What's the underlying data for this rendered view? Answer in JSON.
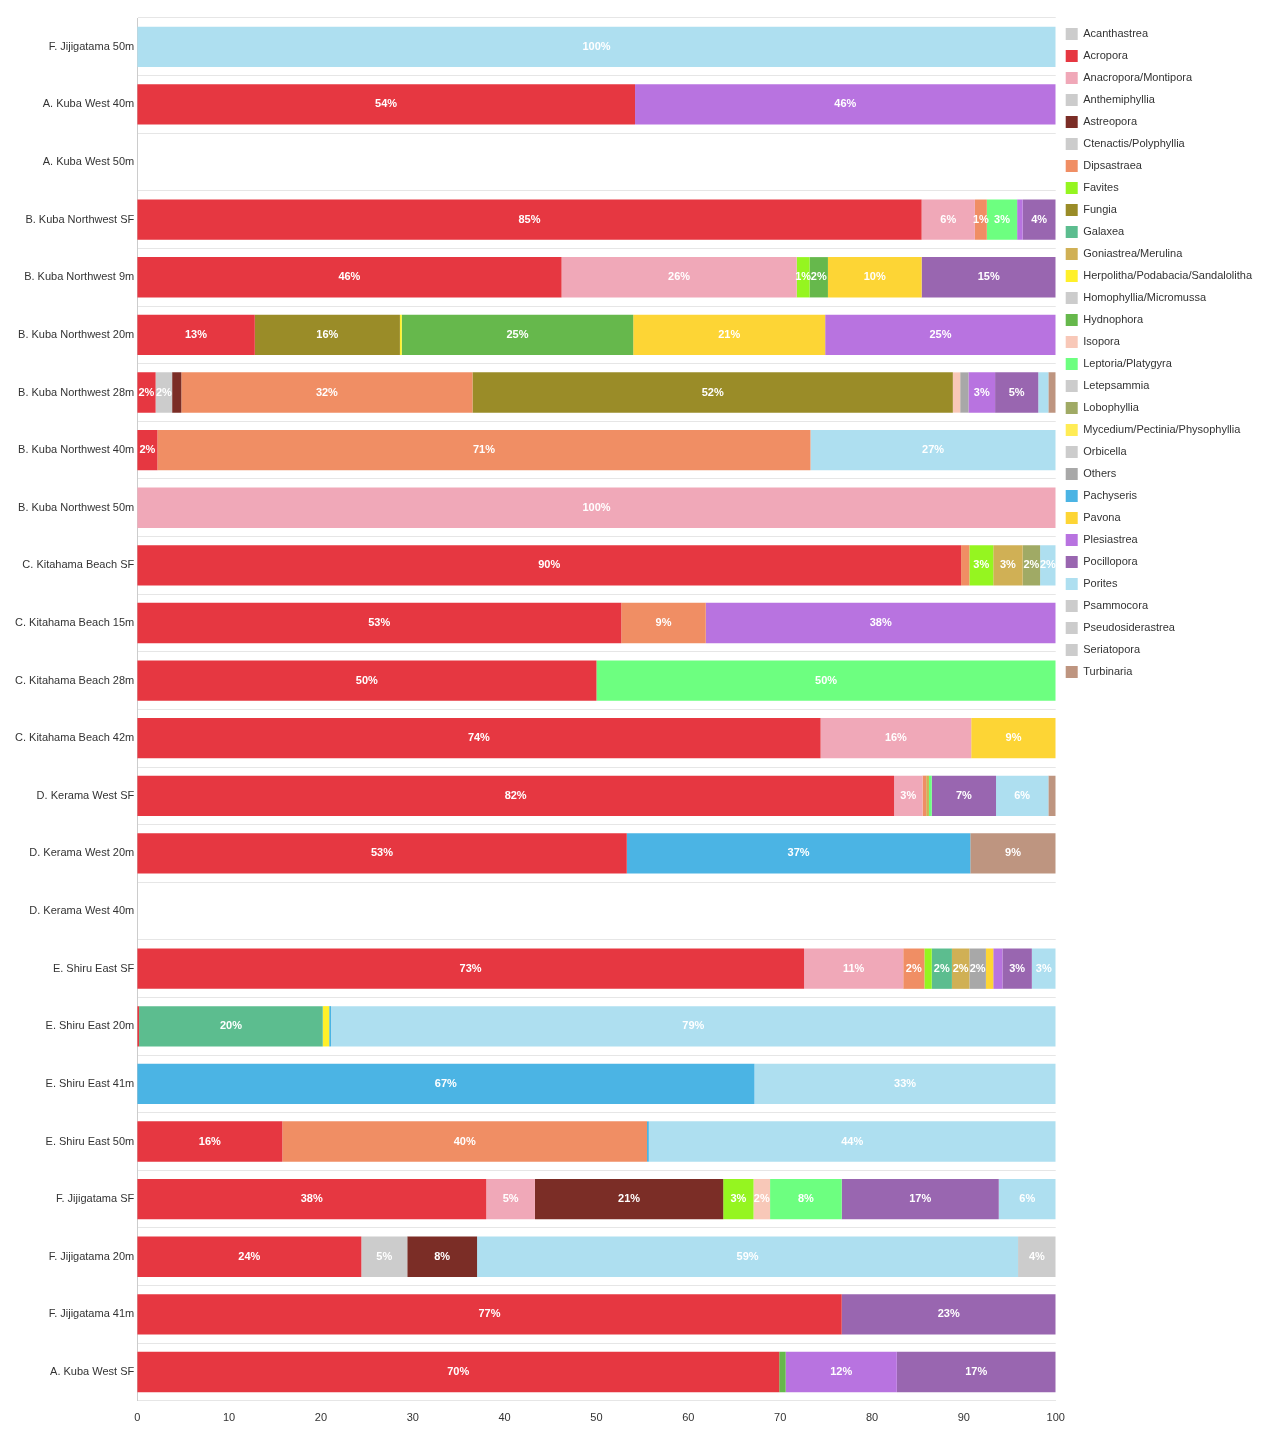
{
  "chart_data": {
    "type": "bar",
    "orientation": "horizontal",
    "stacked": true,
    "legend": "right",
    "grid": "y",
    "categories": [
      "F. Jijigatama 50m",
      "A. Kuba West 40m",
      "A. Kuba West 50m",
      "B. Kuba Northwest SF",
      "B. Kuba Northwest 9m",
      "B. Kuba Northwest 20m",
      "B. Kuba Northwest 28m",
      "B. Kuba Northwest 40m",
      "B. Kuba Northwest 50m",
      "C. Kitahama Beach SF",
      "C. Kitahama Beach 15m",
      "C. Kitahama Beach 28m",
      "C. Kitahama Beach 42m",
      "D. Kerama West SF",
      "D. Kerama West 20m",
      "D. Kerama West 40m",
      "E. Shiru East SF",
      "E. Shiru East 20m",
      "E. Shiru East 41m",
      "E. Shiru East 50m",
      "F. Jijigatama SF",
      "F. Jijigatama 20m",
      "F. Jijigatama 41m",
      "A. Kuba West SF"
    ],
    "xlim": [
      0,
      100
    ],
    "xticks": [
      0,
      10,
      20,
      30,
      40,
      50,
      60,
      70,
      80,
      90,
      100
    ],
    "series": [
      {
        "name": "Acanthastrea",
        "color": "#cccccc",
        "values": [
          null,
          null,
          null,
          null,
          null,
          null,
          null,
          null,
          null,
          null,
          null,
          null,
          null,
          null,
          null,
          null,
          null,
          null,
          null,
          null,
          null,
          null,
          null,
          null
        ]
      },
      {
        "name": "Acropora",
        "color": "#e63741",
        "values": [
          null,
          54.2,
          null,
          85.4,
          46.2,
          12.8,
          2.0,
          2.2,
          null,
          89.7,
          52.7,
          50,
          74.4,
          82.4,
          53.3,
          null,
          72.6,
          0.2,
          null,
          15.8,
          38.0,
          24.4,
          76.7,
          69.9
        ],
        "value_labels": [
          null,
          "54%",
          null,
          "85%",
          "46%",
          "13%",
          "2%",
          "2%",
          null,
          "90%",
          "53%",
          "50%",
          "74%",
          "82%",
          "53%",
          null,
          "73%",
          null,
          null,
          "16%",
          "38%",
          "24%",
          "77%",
          "70%"
        ]
      },
      {
        "name": "Anacropora/Montipora",
        "color": "#f0a8b8",
        "values": [
          null,
          null,
          null,
          5.8,
          25.6,
          null,
          null,
          null,
          100,
          null,
          null,
          null,
          16.4,
          3.1,
          null,
          null,
          10.8,
          null,
          null,
          null,
          5.3,
          null,
          null,
          null
        ],
        "value_labels": [
          null,
          null,
          null,
          "6%",
          "26%",
          null,
          null,
          null,
          "100%",
          null,
          null,
          null,
          "16%",
          "3%",
          null,
          null,
          "11%",
          null,
          null,
          null,
          "5%",
          null,
          null,
          null
        ]
      },
      {
        "name": "Anthemiphyllia",
        "color": "#cccccc",
        "values": [
          null,
          null,
          null,
          null,
          null,
          null,
          1.8,
          null,
          null,
          null,
          null,
          null,
          null,
          null,
          null,
          null,
          null,
          null,
          null,
          null,
          null,
          5.0,
          null,
          null
        ],
        "value_labels": [
          null,
          null,
          null,
          null,
          null,
          null,
          "2%",
          null,
          null,
          null,
          null,
          null,
          null,
          null,
          null,
          null,
          null,
          null,
          null,
          null,
          null,
          "5%",
          null,
          null
        ]
      },
      {
        "name": "Astreopora",
        "color": "#7b2d26",
        "values": [
          null,
          null,
          null,
          null,
          null,
          null,
          1.0,
          null,
          null,
          null,
          null,
          null,
          null,
          null,
          null,
          null,
          null,
          null,
          null,
          null,
          20.5,
          7.6,
          null,
          null
        ],
        "value_labels": [
          null,
          null,
          null,
          null,
          null,
          null,
          null,
          null,
          null,
          null,
          null,
          null,
          null,
          null,
          null,
          null,
          null,
          null,
          null,
          null,
          "21%",
          "8%",
          null,
          null
        ]
      },
      {
        "name": "Ctenactis/Polyphyllia",
        "color": "#cccccc",
        "values": [
          null,
          null,
          null,
          null,
          null,
          null,
          null,
          null,
          null,
          null,
          null,
          null,
          null,
          null,
          null,
          null,
          null,
          null,
          null,
          null,
          null,
          null,
          null,
          null
        ]
      },
      {
        "name": "Dipsastraea",
        "color": "#f08e64",
        "values": [
          null,
          null,
          null,
          1.3,
          null,
          null,
          31.7,
          71.1,
          null,
          0.9,
          9.2,
          null,
          null,
          0.4,
          null,
          null,
          2.3,
          null,
          null,
          39.7,
          null,
          null,
          null,
          null
        ],
        "value_labels": [
          null,
          null,
          null,
          "1%",
          null,
          null,
          "32%",
          "71%",
          null,
          null,
          "9%",
          null,
          null,
          null,
          null,
          null,
          "2%",
          null,
          null,
          "40%",
          null,
          null,
          null,
          null
        ]
      },
      {
        "name": "Favites",
        "color": "#95f520",
        "values": [
          null,
          null,
          null,
          null,
          1.4,
          null,
          null,
          null,
          null,
          2.6,
          null,
          null,
          null,
          null,
          null,
          null,
          0.8,
          null,
          null,
          null,
          3.3,
          null,
          null,
          null
        ],
        "value_labels": [
          null,
          null,
          null,
          null,
          "1%",
          null,
          null,
          null,
          null,
          "3%",
          null,
          null,
          null,
          null,
          null,
          null,
          null,
          null,
          null,
          null,
          "3%",
          null,
          null,
          null
        ]
      },
      {
        "name": "Fungia",
        "color": "#9a8c28",
        "values": [
          null,
          null,
          null,
          null,
          null,
          15.8,
          52.3,
          null,
          null,
          null,
          null,
          null,
          null,
          null,
          null,
          null,
          null,
          null,
          null,
          null,
          null,
          null,
          null,
          null
        ],
        "value_labels": [
          null,
          null,
          null,
          null,
          null,
          "16%",
          "52%",
          null,
          null,
          null,
          null,
          null,
          null,
          null,
          null,
          null,
          null,
          null,
          null,
          null,
          null,
          null,
          null,
          null
        ]
      },
      {
        "name": "Galaxea",
        "color": "#5cbd8f",
        "values": [
          null,
          null,
          null,
          null,
          null,
          null,
          null,
          null,
          null,
          null,
          null,
          null,
          null,
          null,
          null,
          null,
          2.2,
          20.0,
          null,
          null,
          null,
          null,
          null,
          null
        ],
        "value_labels": [
          null,
          null,
          null,
          null,
          null,
          null,
          null,
          null,
          null,
          null,
          null,
          null,
          null,
          null,
          null,
          null,
          "2%",
          "20%",
          null,
          null,
          null,
          null,
          null,
          null
        ]
      },
      {
        "name": "Goniastrea/Merulina",
        "color": "#d0b055",
        "values": [
          null,
          null,
          null,
          null,
          null,
          null,
          null,
          null,
          null,
          3.2,
          null,
          null,
          null,
          0.3,
          null,
          null,
          1.9,
          null,
          null,
          null,
          null,
          null,
          null,
          null
        ],
        "value_labels": [
          null,
          null,
          null,
          null,
          null,
          null,
          null,
          null,
          null,
          "3%",
          null,
          null,
          null,
          null,
          null,
          null,
          "2%",
          null,
          null,
          null,
          null,
          null,
          null,
          null
        ]
      },
      {
        "name": "Herpolitha/Podabacia/Sandalolitha",
        "color": "#fff02a",
        "values": [
          null,
          null,
          null,
          null,
          null,
          0.2,
          null,
          null,
          null,
          null,
          null,
          null,
          null,
          null,
          null,
          null,
          null,
          0.7,
          null,
          null,
          null,
          null,
          null,
          null
        ]
      },
      {
        "name": "Homophyllia/Micromussa",
        "color": "#cccccc",
        "values": [
          null,
          null,
          null,
          null,
          null,
          null,
          null,
          null,
          null,
          null,
          null,
          null,
          null,
          null,
          null,
          null,
          null,
          null,
          null,
          null,
          null,
          null,
          null,
          null
        ]
      },
      {
        "name": "Hydnophora",
        "color": "#66b84c",
        "values": [
          null,
          null,
          null,
          null,
          2.0,
          25.2,
          null,
          null,
          null,
          null,
          null,
          null,
          null,
          null,
          null,
          null,
          null,
          null,
          null,
          null,
          null,
          null,
          null,
          0.7
        ],
        "value_labels": [
          null,
          null,
          null,
          null,
          "2%",
          "25%",
          null,
          null,
          null,
          null,
          null,
          null,
          null,
          null,
          null,
          null,
          null,
          null,
          null,
          null,
          null,
          null,
          null,
          null
        ]
      },
      {
        "name": "Isopora",
        "color": "#f8c8b8",
        "values": [
          null,
          null,
          null,
          null,
          null,
          null,
          0.8,
          null,
          null,
          null,
          null,
          null,
          null,
          null,
          null,
          null,
          null,
          null,
          null,
          null,
          1.8,
          null,
          null,
          null
        ],
        "value_labels": [
          null,
          null,
          null,
          null,
          null,
          null,
          null,
          null,
          null,
          null,
          null,
          null,
          null,
          null,
          null,
          null,
          null,
          null,
          null,
          null,
          "2%",
          null,
          null,
          null
        ]
      },
      {
        "name": "Leptoria/Platygyra",
        "color": "#6dff80",
        "values": [
          null,
          null,
          null,
          3.3,
          null,
          null,
          null,
          null,
          null,
          null,
          null,
          50,
          null,
          0.3,
          null,
          null,
          null,
          null,
          null,
          null,
          7.8,
          null,
          null,
          null
        ],
        "value_labels": [
          null,
          null,
          null,
          "3%",
          null,
          null,
          null,
          null,
          null,
          null,
          null,
          "50%",
          null,
          null,
          null,
          null,
          null,
          null,
          null,
          null,
          "8%",
          null,
          null,
          null
        ]
      },
      {
        "name": "Letepsammia",
        "color": "#cccccc",
        "values": [
          null,
          null,
          null,
          null,
          null,
          null,
          null,
          null,
          null,
          null,
          null,
          null,
          null,
          null,
          null,
          null,
          null,
          null,
          null,
          null,
          null,
          null,
          null,
          null
        ]
      },
      {
        "name": "Lobophyllia",
        "color": "#a0aa65",
        "values": [
          null,
          null,
          null,
          null,
          null,
          null,
          null,
          null,
          null,
          1.9,
          null,
          null,
          null,
          null,
          null,
          null,
          null,
          null,
          null,
          null,
          null,
          null,
          null,
          null
        ],
        "value_labels": [
          null,
          null,
          null,
          null,
          null,
          null,
          null,
          null,
          null,
          "2%",
          null,
          null,
          null,
          null,
          null,
          null,
          null,
          null,
          null,
          null,
          null,
          null,
          null,
          null
        ]
      },
      {
        "name": "Mycedium/Pectinia/Physophyllia",
        "color": "#ffec55",
        "values": [
          null,
          null,
          null,
          null,
          null,
          null,
          null,
          null,
          null,
          null,
          null,
          null,
          null,
          null,
          null,
          null,
          null,
          null,
          null,
          null,
          null,
          null,
          null,
          null
        ]
      },
      {
        "name": "Orbicella",
        "color": "#cccccc",
        "values": [
          null,
          null,
          null,
          null,
          null,
          null,
          null,
          null,
          null,
          null,
          null,
          null,
          null,
          null,
          null,
          null,
          null,
          null,
          null,
          null,
          null,
          null,
          null,
          null
        ]
      },
      {
        "name": "Others",
        "color": "#a8a8a8",
        "values": [
          null,
          null,
          null,
          null,
          null,
          null,
          0.9,
          null,
          null,
          null,
          null,
          null,
          null,
          null,
          null,
          null,
          1.8,
          null,
          null,
          null,
          null,
          null,
          null,
          null
        ],
        "value_labels": [
          null,
          null,
          null,
          null,
          null,
          null,
          null,
          null,
          null,
          null,
          null,
          null,
          null,
          null,
          null,
          null,
          "2%",
          null,
          null,
          null,
          null,
          null,
          null,
          null
        ]
      },
      {
        "name": "Pachyseris",
        "color": "#4bb4e4",
        "values": [
          null,
          null,
          null,
          null,
          null,
          null,
          null,
          null,
          null,
          null,
          null,
          null,
          null,
          null,
          37.4,
          null,
          null,
          0.2,
          67.2,
          0.2,
          null,
          null,
          null,
          null
        ],
        "value_labels": [
          null,
          null,
          null,
          null,
          null,
          null,
          null,
          null,
          null,
          null,
          null,
          null,
          null,
          null,
          "37%",
          null,
          null,
          null,
          "67%",
          null,
          null,
          null,
          null,
          null
        ]
      },
      {
        "name": "Pavona",
        "color": "#fdd535",
        "values": [
          null,
          null,
          null,
          null,
          10.2,
          20.9,
          null,
          null,
          null,
          null,
          null,
          null,
          9.2,
          null,
          null,
          null,
          0.8,
          null,
          null,
          null,
          null,
          null,
          null,
          null
        ],
        "value_labels": [
          null,
          null,
          null,
          null,
          "10%",
          "21%",
          null,
          null,
          null,
          null,
          null,
          null,
          "9%",
          null,
          null,
          null,
          null,
          null,
          null,
          null,
          null,
          null,
          null,
          null
        ]
      },
      {
        "name": "Plesiastrea",
        "color": "#b873e0",
        "values": [
          null,
          45.8,
          null,
          0.6,
          null,
          25.1,
          2.9,
          null,
          null,
          null,
          38.1,
          null,
          null,
          null,
          null,
          null,
          1.0,
          null,
          null,
          null,
          null,
          null,
          null,
          12.1
        ],
        "value_labels": [
          null,
          "46%",
          null,
          null,
          null,
          "25%",
          "3%",
          null,
          null,
          null,
          "38%",
          null,
          null,
          null,
          null,
          null,
          null,
          null,
          null,
          null,
          null,
          null,
          null,
          "12%"
        ]
      },
      {
        "name": "Pocillopora",
        "color": "#9966b0",
        "values": [
          null,
          null,
          null,
          3.6,
          14.6,
          null,
          4.7,
          null,
          null,
          null,
          null,
          null,
          null,
          7.0,
          null,
          null,
          3.2,
          null,
          null,
          null,
          17.1,
          null,
          23.3,
          17.3
        ],
        "value_labels": [
          null,
          null,
          null,
          "4%",
          "15%",
          null,
          "5%",
          null,
          null,
          null,
          null,
          null,
          null,
          "7%",
          null,
          null,
          "3%",
          null,
          null,
          null,
          "17%",
          null,
          "23%",
          "17%"
        ]
      },
      {
        "name": "Porites",
        "color": "#aedff0",
        "values": [
          100,
          null,
          null,
          null,
          null,
          null,
          1.1,
          26.7,
          null,
          1.7,
          null,
          null,
          null,
          5.7,
          null,
          null,
          2.6,
          78.9,
          32.8,
          44.3,
          6.2,
          58.9,
          null,
          null
        ],
        "value_labels": [
          "100%",
          null,
          null,
          null,
          null,
          null,
          null,
          "27%",
          null,
          "2%",
          null,
          null,
          null,
          "6%",
          null,
          null,
          "3%",
          "79%",
          "33%",
          "44%",
          "6%",
          "59%",
          null,
          null
        ]
      },
      {
        "name": "Psammocora",
        "color": "#cccccc",
        "values": [
          null,
          null,
          null,
          null,
          null,
          null,
          null,
          null,
          null,
          null,
          null,
          null,
          null,
          null,
          null,
          null,
          null,
          null,
          null,
          null,
          null,
          4.1,
          null,
          null
        ],
        "value_labels": [
          null,
          null,
          null,
          null,
          null,
          null,
          null,
          null,
          null,
          null,
          null,
          null,
          null,
          null,
          null,
          null,
          null,
          null,
          null,
          null,
          null,
          "4%",
          null,
          null
        ]
      },
      {
        "name": "Pseudosiderastrea",
        "color": "#cccccc",
        "values": [
          null,
          null,
          null,
          null,
          null,
          null,
          null,
          null,
          null,
          null,
          null,
          null,
          null,
          null,
          null,
          null,
          null,
          null,
          null,
          null,
          null,
          null,
          null,
          null
        ]
      },
      {
        "name": "Seriatopora",
        "color": "#cccccc",
        "values": [
          null,
          null,
          null,
          null,
          null,
          null,
          null,
          null,
          null,
          null,
          null,
          null,
          null,
          null,
          null,
          null,
          null,
          null,
          null,
          null,
          null,
          null,
          null,
          null
        ]
      },
      {
        "name": "Turbinaria",
        "color": "#be9580",
        "values": [
          null,
          null,
          null,
          null,
          null,
          null,
          0.8,
          null,
          null,
          null,
          null,
          null,
          null,
          0.8,
          9.3,
          null,
          null,
          null,
          null,
          null,
          null,
          null,
          null,
          null
        ],
        "value_labels": [
          null,
          null,
          null,
          null,
          null,
          null,
          null,
          null,
          null,
          null,
          null,
          null,
          null,
          null,
          "9%",
          null,
          null,
          null,
          null,
          null,
          null,
          null,
          null,
          null
        ]
      }
    ]
  }
}
